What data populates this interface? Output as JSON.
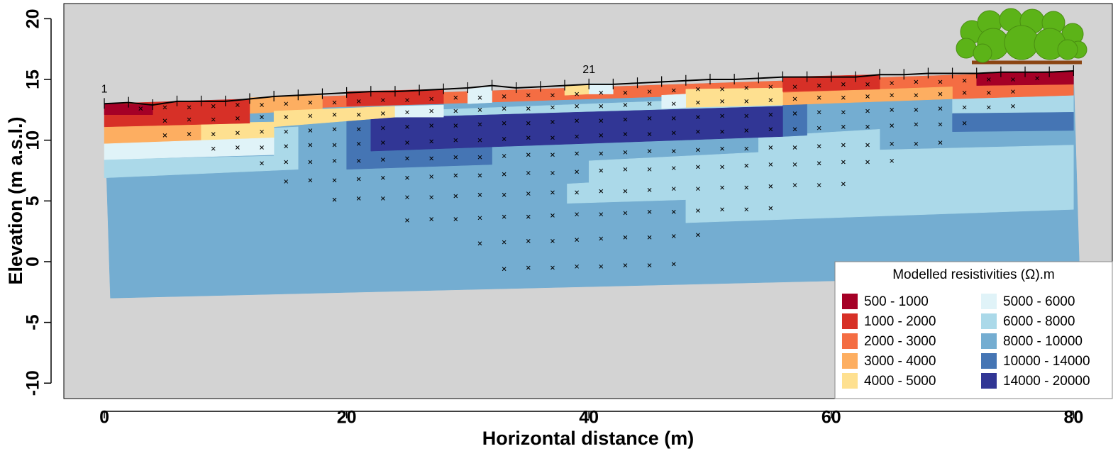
{
  "chart_data": {
    "type": "resistivity-section",
    "xlabel": "Horizontal distance (m)",
    "ylabel": "Elevation (m a.s.l.)",
    "xlim": [
      -3.34,
      83.2
    ],
    "ylim": [
      -11.27,
      21.25
    ],
    "xticks": [
      0,
      20,
      40,
      60,
      80
    ],
    "yticks": [
      -10,
      -5,
      0,
      5,
      10,
      15,
      20
    ],
    "legend": "bottom right",
    "legend_title": "Modelled resistivities (Ω).m",
    "classes": [
      {
        "label": "500 - 1000",
        "color": "#a50026"
      },
      {
        "label": "1000 - 2000",
        "color": "#d73027"
      },
      {
        "label": "2000 - 3000",
        "color": "#f46d43"
      },
      {
        "label": "3000 - 4000",
        "color": "#fdae61"
      },
      {
        "label": "4000 - 5000",
        "color": "#fee090"
      },
      {
        "label": "5000 - 6000",
        "color": "#e0f3f8"
      },
      {
        "label": "6000 - 8000",
        "color": "#abd9e9"
      },
      {
        "label": "8000 - 10000",
        "color": "#74add1"
      },
      {
        "label": "10000 - 14000",
        "color": "#4575b4"
      },
      {
        "label": "14000 - 20000",
        "color": "#313695"
      }
    ],
    "zones": [
      {
        "class": 7,
        "points": [
          [
            0,
            13
          ],
          [
            80,
            15.7
          ],
          [
            80.5,
            -1.1
          ],
          [
            0.5,
            -3
          ]
        ]
      },
      {
        "class": 6,
        "points": [
          [
            0,
            8.4
          ],
          [
            14,
            8.7
          ],
          [
            14,
            11
          ],
          [
            16,
            11.1
          ],
          [
            16,
            7.6
          ],
          [
            0,
            6.9
          ]
        ]
      },
      {
        "class": 6,
        "points": [
          [
            38.2,
            6.4
          ],
          [
            40,
            6.5
          ],
          [
            40,
            8.3
          ],
          [
            54,
            9
          ],
          [
            54,
            10.3
          ],
          [
            64,
            10.9
          ],
          [
            64,
            9.2
          ],
          [
            80,
            9.6
          ],
          [
            80,
            4.3
          ],
          [
            48,
            3.2
          ],
          [
            48,
            5.1
          ],
          [
            38.2,
            4.8
          ]
        ]
      },
      {
        "class": 6,
        "points": [
          [
            70,
            13.4
          ],
          [
            80,
            13.7
          ],
          [
            80,
            12.3
          ],
          [
            70,
            12.2
          ]
        ]
      },
      {
        "class": 6,
        "points": [
          [
            22,
            12.3
          ],
          [
            56,
            13.6
          ],
          [
            56,
            12.8
          ],
          [
            22,
            11.8
          ]
        ]
      },
      {
        "class": 8,
        "points": [
          [
            20,
            11.8
          ],
          [
            22,
            11.8
          ],
          [
            22,
            9.1
          ],
          [
            32,
            9.6
          ],
          [
            32,
            8.0
          ],
          [
            20,
            7.6
          ]
        ]
      },
      {
        "class": 8,
        "points": [
          [
            56,
            12.9
          ],
          [
            58,
            13
          ],
          [
            58,
            10.4
          ],
          [
            56,
            10.3
          ]
        ]
      },
      {
        "class": 8,
        "points": [
          [
            70,
            12.2
          ],
          [
            80,
            12.3
          ],
          [
            80,
            10.8
          ],
          [
            70,
            10.7
          ]
        ]
      },
      {
        "class": 9,
        "points": [
          [
            22,
            11.8
          ],
          [
            56,
            12.8
          ],
          [
            56,
            10.3
          ],
          [
            22,
            9.1
          ]
        ]
      },
      {
        "class": 2,
        "points": [
          [
            12,
            13.4
          ],
          [
            80,
            15.7
          ],
          [
            80,
            13.7
          ],
          [
            70,
            13.4
          ],
          [
            56,
            13.9
          ],
          [
            12,
            12.5
          ]
        ]
      },
      {
        "class": 3,
        "points": [
          [
            0,
            11.1
          ],
          [
            8,
            11.3
          ],
          [
            8,
            9.9
          ],
          [
            0,
            9.7
          ]
        ]
      },
      {
        "class": 3,
        "points": [
          [
            12,
            13.5
          ],
          [
            18,
            13.7
          ],
          [
            18,
            12.5
          ],
          [
            12,
            12.2
          ]
        ]
      },
      {
        "class": 3,
        "points": [
          [
            56,
            13.9
          ],
          [
            70,
            14.4
          ],
          [
            70,
            13.4
          ],
          [
            56,
            12.9
          ]
        ]
      },
      {
        "class": 4,
        "points": [
          [
            8,
            11.4
          ],
          [
            14,
            11.5
          ],
          [
            14,
            12.4
          ],
          [
            24,
            12.8
          ],
          [
            24,
            11.9
          ],
          [
            14,
            11.1
          ],
          [
            14,
            10.1
          ],
          [
            8,
            9.9
          ]
        ]
      },
      {
        "class": 4,
        "points": [
          [
            48,
            14.2
          ],
          [
            56,
            14.3
          ],
          [
            56,
            12.9
          ],
          [
            48,
            12.7
          ]
        ]
      },
      {
        "class": 4,
        "points": [
          [
            38,
            14.5
          ],
          [
            40,
            14.6
          ],
          [
            40,
            13.8
          ],
          [
            38,
            13.7
          ]
        ]
      },
      {
        "class": 5,
        "points": [
          [
            0,
            9.7
          ],
          [
            14,
            10.2
          ],
          [
            14,
            8.8
          ],
          [
            0,
            8.4
          ]
        ]
      },
      {
        "class": 5,
        "points": [
          [
            30,
            14.2
          ],
          [
            32,
            14.4
          ],
          [
            32,
            13.1
          ],
          [
            30,
            13.0
          ]
        ]
      },
      {
        "class": 5,
        "points": [
          [
            40,
            14.7
          ],
          [
            42,
            14.7
          ],
          [
            42,
            13.8
          ],
          [
            40,
            13.8
          ]
        ]
      },
      {
        "class": 5,
        "points": [
          [
            46,
            13.7
          ],
          [
            48,
            13.8
          ],
          [
            48,
            12.7
          ],
          [
            46,
            12.6
          ]
        ]
      },
      {
        "class": 5,
        "points": [
          [
            24,
            12.8
          ],
          [
            28,
            12.9
          ],
          [
            28,
            11.9
          ],
          [
            24,
            11.9
          ]
        ]
      },
      {
        "class": 1,
        "points": [
          [
            0,
            13
          ],
          [
            12,
            13.4
          ],
          [
            12,
            11.4
          ],
          [
            8,
            11.3
          ],
          [
            0,
            11.1
          ]
        ]
      },
      {
        "class": 1,
        "points": [
          [
            20,
            14.0
          ],
          [
            28,
            14.2
          ],
          [
            28,
            13.0
          ],
          [
            20,
            12.8
          ]
        ]
      },
      {
        "class": 1,
        "points": [
          [
            56,
            15.2
          ],
          [
            64,
            15.4
          ],
          [
            64,
            14.2
          ],
          [
            56,
            14.0
          ]
        ]
      },
      {
        "class": 0,
        "points": [
          [
            0,
            13
          ],
          [
            4,
            12.9
          ],
          [
            4,
            12.1
          ],
          [
            0,
            12.1
          ]
        ]
      },
      {
        "class": 0,
        "points": [
          [
            72,
            15.5
          ],
          [
            80,
            15.7
          ],
          [
            80,
            14.6
          ],
          [
            72,
            14.5
          ]
        ]
      }
    ],
    "electrodes": {
      "x": [
        0,
        2,
        4,
        6,
        8,
        10,
        12,
        14,
        16,
        18,
        20,
        22,
        24,
        26,
        28,
        30,
        32,
        34,
        36,
        38,
        40,
        42,
        44,
        46,
        48,
        50,
        52,
        54,
        56,
        58,
        60,
        62,
        64,
        66,
        68,
        70,
        72,
        74,
        76,
        78,
        80
      ],
      "elevation": [
        13.0,
        13.1,
        12.9,
        13.2,
        13.2,
        13.2,
        13.4,
        13.6,
        13.7,
        13.8,
        13.9,
        14.0,
        14.0,
        14.1,
        14.2,
        14.3,
        14.5,
        14.3,
        14.4,
        14.5,
        14.6,
        14.6,
        14.7,
        14.8,
        14.9,
        15.0,
        15.0,
        15.1,
        15.2,
        15.2,
        15.2,
        15.2,
        15.4,
        15.4,
        15.5,
        15.5,
        15.5,
        15.6,
        15.6,
        15.6,
        15.7
      ],
      "labels": [
        "1",
        null,
        null,
        null,
        null,
        null,
        null,
        null,
        null,
        null,
        null,
        null,
        null,
        null,
        null,
        null,
        null,
        null,
        null,
        null,
        "21",
        null,
        null,
        null,
        null,
        null,
        null,
        null,
        null,
        null,
        null,
        null,
        null,
        null,
        null,
        null,
        null,
        null,
        null,
        null,
        null
      ]
    },
    "measurements": [
      {
        "x": [
          3,
          5,
          7,
          9,
          11,
          13,
          15,
          17,
          19,
          21,
          23,
          25,
          27,
          29,
          31,
          33,
          35,
          37,
          39,
          41,
          43,
          45,
          47,
          49,
          51,
          53,
          55,
          57,
          59,
          61,
          63,
          65,
          67,
          69,
          71,
          73,
          75,
          77
        ],
        "y": [
          12.6,
          12.7,
          12.7,
          12.8,
          12.9,
          12.9,
          13.0,
          13.1,
          13.1,
          13.2,
          13.3,
          13.3,
          13.4,
          13.5,
          13.5,
          13.6,
          13.7,
          13.7,
          13.8,
          13.9,
          13.9,
          14.0,
          14.1,
          14.2,
          14.2,
          14.3,
          14.4,
          14.4,
          14.5,
          14.6,
          14.6,
          14.7,
          14.8,
          14.8,
          14.9,
          15.0,
          15.0,
          15.1
        ]
      },
      {
        "x": [
          5,
          7,
          9,
          11,
          13,
          15,
          17,
          19,
          21,
          23,
          25,
          27,
          29,
          31,
          33,
          35,
          37,
          39,
          41,
          43,
          45,
          47,
          49,
          51,
          53,
          55,
          57,
          59,
          61,
          63,
          65,
          67,
          69,
          71,
          73,
          75
        ],
        "y": [
          11.6,
          11.7,
          11.7,
          11.8,
          11.9,
          11.9,
          12.0,
          12.1,
          12.1,
          12.2,
          12.3,
          12.4,
          12.4,
          12.5,
          12.6,
          12.6,
          12.7,
          12.8,
          12.8,
          12.9,
          13.0,
          13.0,
          13.1,
          13.2,
          13.2,
          13.3,
          13.4,
          13.5,
          13.5,
          13.6,
          13.7,
          13.7,
          13.8,
          13.9,
          13.9,
          14.0
        ]
      },
      {
        "x": [
          5,
          7,
          9,
          11,
          13,
          15,
          17,
          19,
          21,
          23,
          25,
          27,
          29,
          31,
          33,
          35,
          37,
          39,
          41,
          43,
          45,
          47,
          49,
          51,
          53,
          55,
          57,
          59,
          61,
          63,
          65,
          67,
          69,
          71,
          73,
          75
        ],
        "y": [
          10.4,
          10.5,
          10.5,
          10.6,
          10.7,
          10.7,
          10.8,
          10.9,
          10.9,
          11.0,
          11.1,
          11.2,
          11.2,
          11.3,
          11.4,
          11.4,
          11.5,
          11.6,
          11.6,
          11.7,
          11.8,
          11.8,
          11.9,
          12.0,
          12.0,
          12.1,
          12.2,
          12.3,
          12.3,
          12.4,
          12.5,
          12.5,
          12.6,
          12.7,
          12.7,
          12.8
        ]
      },
      {
        "x": [
          9,
          11,
          13,
          15,
          17,
          19,
          21,
          23,
          25,
          27,
          29,
          31,
          33,
          35,
          37,
          39,
          41,
          43,
          45,
          47,
          49,
          51,
          53,
          55,
          57,
          59,
          61,
          63,
          65,
          67,
          69,
          71
        ],
        "y": [
          9.3,
          9.4,
          9.4,
          9.5,
          9.6,
          9.6,
          9.7,
          9.8,
          9.8,
          9.9,
          10.0,
          10.0,
          10.1,
          10.2,
          10.2,
          10.3,
          10.4,
          10.5,
          10.5,
          10.6,
          10.7,
          10.7,
          10.8,
          10.9,
          10.9,
          11.0,
          11.1,
          11.1,
          11.2,
          11.3,
          11.3,
          11.4
        ]
      },
      {
        "x": [
          13,
          15,
          17,
          19,
          21,
          23,
          25,
          27,
          29,
          31,
          33,
          35,
          37,
          39,
          41,
          43,
          45,
          47,
          49,
          51,
          53,
          55,
          57,
          59,
          61,
          63,
          65,
          67,
          69
        ],
        "y": [
          8.1,
          8.2,
          8.2,
          8.3,
          8.3,
          8.4,
          8.5,
          8.5,
          8.6,
          8.6,
          8.7,
          8.8,
          8.8,
          8.9,
          8.9,
          9.0,
          9.1,
          9.1,
          9.2,
          9.3,
          9.3,
          9.4,
          9.4,
          9.5,
          9.6,
          9.6,
          9.7,
          9.7,
          9.8
        ]
      },
      {
        "x": [
          15,
          17,
          19,
          21,
          23,
          25,
          27,
          29,
          31,
          33,
          35,
          37,
          39,
          41,
          43,
          45,
          47,
          49,
          51,
          53,
          55,
          57,
          59,
          61,
          63,
          65
        ],
        "y": [
          6.6,
          6.7,
          6.7,
          6.8,
          6.9,
          6.9,
          7.0,
          7.1,
          7.1,
          7.2,
          7.3,
          7.3,
          7.4,
          7.5,
          7.6,
          7.6,
          7.7,
          7.8,
          7.8,
          7.9,
          8.0,
          8.0,
          8.1,
          8.2,
          8.2,
          8.3
        ]
      },
      {
        "x": [
          19,
          21,
          23,
          25,
          27,
          29,
          31,
          33,
          35,
          37,
          39,
          41,
          43,
          45,
          47,
          49,
          51,
          53,
          55,
          57,
          59,
          61
        ],
        "y": [
          5.1,
          5.2,
          5.2,
          5.3,
          5.3,
          5.4,
          5.5,
          5.5,
          5.6,
          5.7,
          5.7,
          5.8,
          5.8,
          5.9,
          6.0,
          6.0,
          6.1,
          6.1,
          6.2,
          6.3,
          6.3,
          6.4
        ]
      },
      {
        "x": [
          25,
          27,
          29,
          31,
          33,
          35,
          37,
          39,
          41,
          43,
          45,
          47,
          49,
          51,
          53,
          55
        ],
        "y": [
          3.4,
          3.5,
          3.5,
          3.6,
          3.7,
          3.7,
          3.8,
          3.9,
          3.9,
          4.0,
          4.1,
          4.1,
          4.2,
          4.3,
          4.3,
          4.4
        ]
      },
      {
        "x": [
          31,
          33,
          35,
          37,
          39,
          41,
          43,
          45,
          47,
          49
        ],
        "y": [
          1.5,
          1.6,
          1.7,
          1.7,
          1.8,
          1.9,
          2.0,
          2.0,
          2.1,
          2.2
        ]
      },
      {
        "x": [
          33,
          35,
          37,
          39,
          41,
          43,
          45,
          47
        ],
        "y": [
          -0.6,
          -0.5,
          -0.5,
          -0.4,
          -0.4,
          -0.3,
          -0.3,
          -0.2
        ]
      }
    ]
  }
}
